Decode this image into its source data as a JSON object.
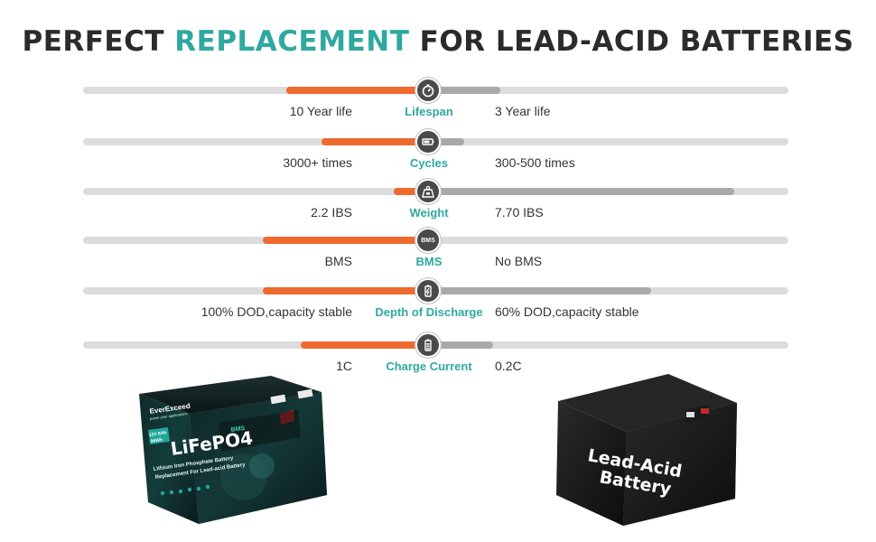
{
  "title": {
    "part1": "PERFECT ",
    "accent": "REPLACEMENT",
    "part2": " FOR LEAD-ACID BATTERIES"
  },
  "colors": {
    "accent": "#2fa8a0",
    "lifepo4_bar": "#ee6a2e",
    "lead_acid_bar": "#a9a9a9",
    "track": "#dcdcdc"
  },
  "rows": [
    {
      "metric": "Lifespan",
      "left": "10 Year life",
      "right": "3 Year life",
      "icon": "stopwatch-icon",
      "left_level": 0.41,
      "right_level": 0.2
    },
    {
      "metric": "Cycles",
      "left": "3000+ times",
      "right": "300-500 times",
      "icon": "battery-icon",
      "left_level": 0.31,
      "right_level": 0.1
    },
    {
      "metric": "Weight",
      "left": "2.2 IBS",
      "right": "7.70 IBS",
      "icon": "weight-icon",
      "left_level": 0.1,
      "right_level": 0.85
    },
    {
      "metric": "BMS",
      "left": "BMS",
      "right": "No BMS",
      "icon": "bms-icon",
      "icon_text": "BMS",
      "left_level": 0.48,
      "right_level": 0.0
    },
    {
      "metric": "Depth of Discharge",
      "left": "100% DOD,capacity stable",
      "right": "60% DOD,capacity stable",
      "icon": "battery-level-icon",
      "left_level": 0.48,
      "right_level": 0.62
    },
    {
      "metric": "Charge Current",
      "left": "1C",
      "right": "0.2C",
      "icon": "battery-charge-icon",
      "left_level": 0.37,
      "right_level": 0.18
    }
  ],
  "lifepo4_battery": {
    "brand": "EverExceed",
    "tagline": "power your applications",
    "voltage_badge": "12V 8Ah",
    "energy_badge": "96Wh",
    "bms_badge": "BMS",
    "name": "LiFePO4",
    "line1": "Lithium Iron Phosphate Battery",
    "line2": "Replacement For Lead-acid Battery"
  },
  "lead_acid_battery": {
    "label_line1": "Lead-Acid",
    "label_line2": "Battery"
  }
}
